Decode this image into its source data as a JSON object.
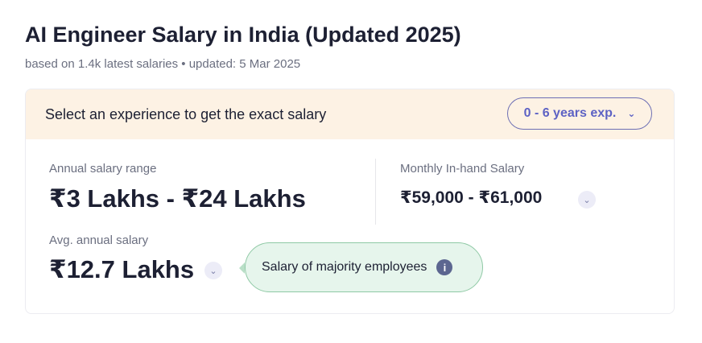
{
  "header": {
    "title": "AI Engineer Salary in India (Updated 2025)",
    "subtitle": "based on 1.4k latest salaries • updated: 5 Mar 2025"
  },
  "experience": {
    "prompt": "Select an experience to get the exact salary",
    "selected": "0 - 6 years exp.",
    "icon": "chevron-down-icon"
  },
  "annual_range": {
    "label": "Annual salary range",
    "value": "₹3 Lakhs - ₹24 Lakhs"
  },
  "monthly": {
    "label": "Monthly In-hand Salary",
    "value": "₹59,000 - ₹61,000"
  },
  "average": {
    "label": "Avg. annual salary",
    "value": "₹12.7 Lakhs"
  },
  "tooltip": {
    "text": "Salary of majority employees",
    "icon": "info-icon"
  },
  "colors": {
    "accent": "#5d62c4",
    "band": "#fdf2e4",
    "tooltip_bg": "#e6f5ec"
  }
}
